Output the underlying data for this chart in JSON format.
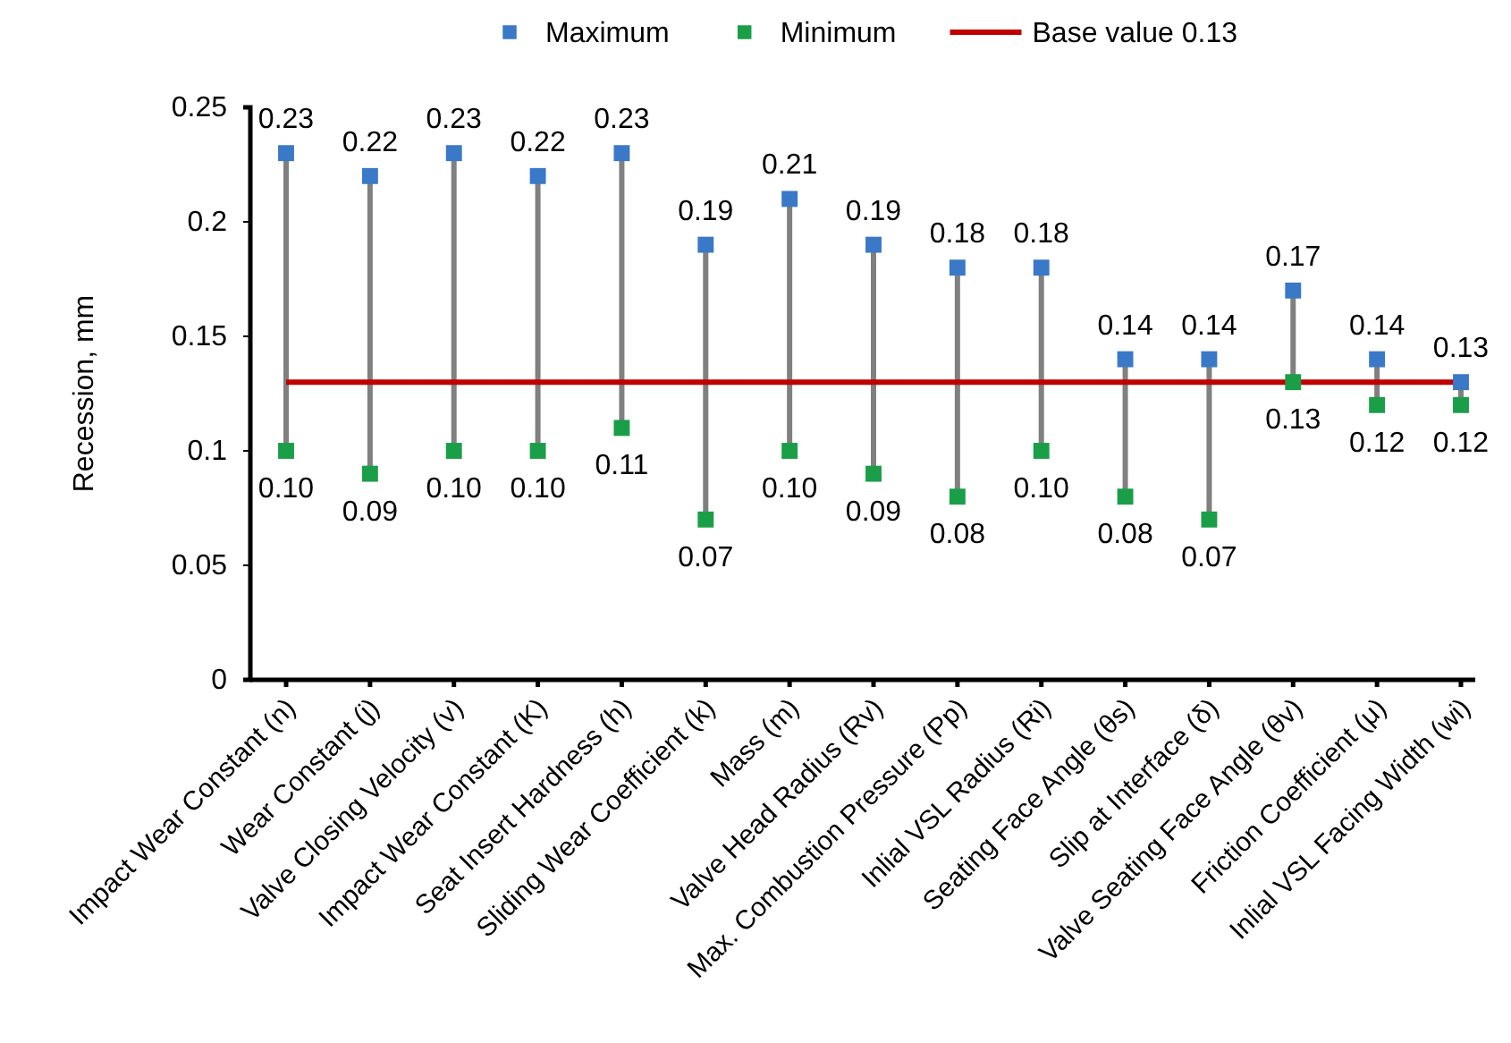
{
  "chart_data": {
    "type": "scatter",
    "ylabel": "Recession, mm",
    "categories": [
      "Impact Wear Constant (n)",
      "Wear Constant (j)",
      "Valve Closing Velocity (v)",
      "Impact Wear Constant (K)",
      "Seat Insert Hardness (h)",
      "Sliding Wear Coefficient (k)",
      "Mass (m)",
      "Valve Head Radius (Rv)",
      "Max. Combustion Pressure (Pp)",
      "Inlial VSL Radius (Ri)",
      "Seating Face Angle (θs)",
      "Slip at Interface (δ)",
      "Valve Seating Face Angle (θv)",
      "Friction Coefficient (μ)",
      "Inlial VSL Facing Width (wi)"
    ],
    "series": [
      {
        "name": "Maximum",
        "color": "#3a78c8",
        "values": [
          0.23,
          0.22,
          0.23,
          0.22,
          0.23,
          0.19,
          0.21,
          0.19,
          0.18,
          0.18,
          0.14,
          0.14,
          0.17,
          0.14,
          0.13
        ],
        "value_labels": [
          "0.23",
          "0.22",
          "0.23",
          "0.22",
          "0.23",
          "0.19",
          "0.21",
          "0.19",
          "0.18",
          "0.18",
          "0.14",
          "0.14",
          "0.17",
          "0.14",
          "0.13"
        ]
      },
      {
        "name": "Minimum",
        "color": "#1a9e48",
        "values": [
          0.1,
          0.09,
          0.1,
          0.1,
          0.11,
          0.07,
          0.1,
          0.09,
          0.08,
          0.1,
          0.08,
          0.07,
          0.13,
          0.12,
          0.12
        ],
        "value_labels": [
          "0.10",
          "0.09",
          "0.10",
          "0.10",
          "0.11",
          "0.07",
          "0.10",
          "0.09",
          "0.08",
          "0.10",
          "0.08",
          "0.07",
          "0.13",
          "0.12",
          "0.12"
        ]
      }
    ],
    "ref_lines": [
      {
        "axis": "y",
        "value": 0.13,
        "label": "Base value 0.13",
        "color": "#c00000",
        "line_style": "solid"
      }
    ],
    "ylim": [
      0,
      0.25
    ],
    "yticks": [
      0,
      0.05,
      0.1,
      0.15,
      0.2,
      0.25
    ],
    "marker": "square",
    "grid": false,
    "legend": "top"
  }
}
